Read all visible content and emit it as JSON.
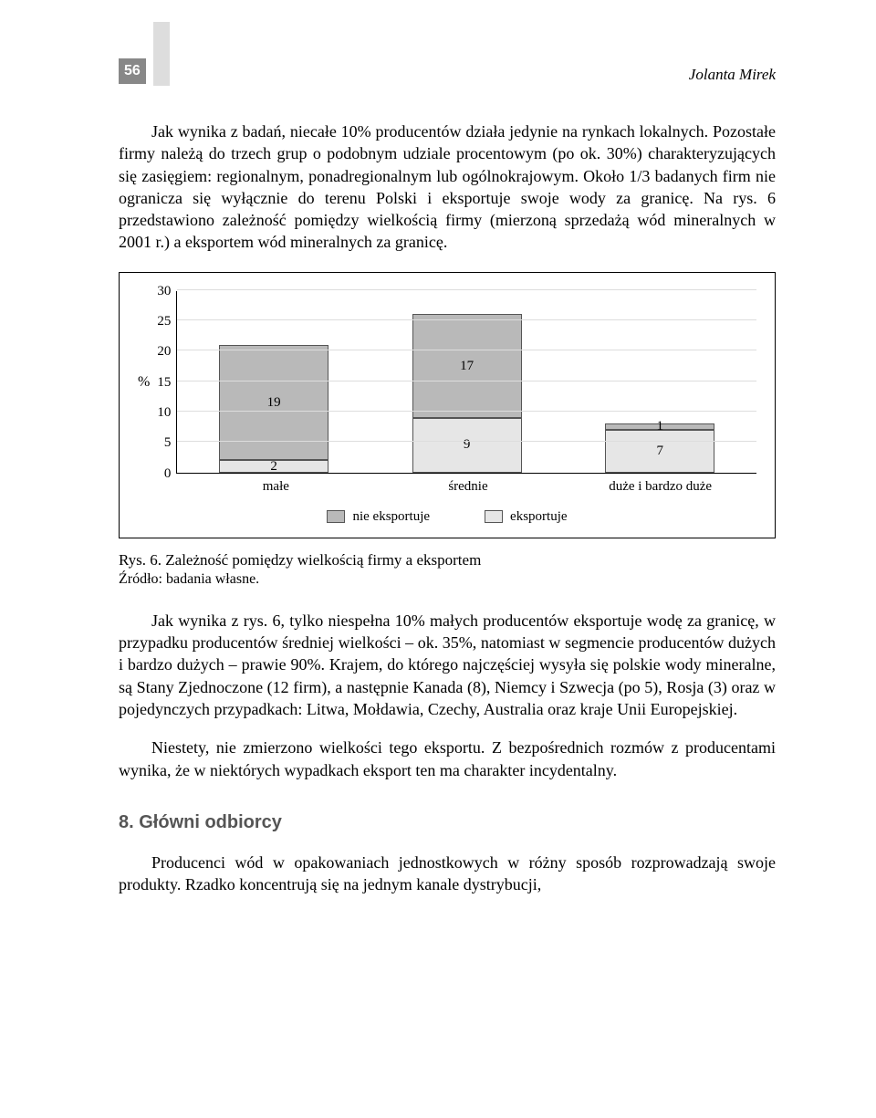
{
  "page_number": "56",
  "author": "Jolanta Mirek",
  "paragraphs": {
    "p1": "Jak wynika z badań, niecałe 10% producentów działa jedynie na rynkach lokalnych. Pozostałe firmy należą do trzech grup o podobnym udziale procentowym (po ok. 30%) charakteryzujących się zasięgiem: regionalnym, ponadregionalnym lub ogólnokrajowym. Około 1/3 badanych firm nie ogranicza się wyłącznie do terenu Polski i eksportuje swoje wody za granicę. Na rys. 6 przedstawiono zależność pomiędzy wielkością firmy (mierzoną sprzedażą wód mineralnych w 2001 r.) a eksportem wód mineralnych za granicę.",
    "p2": "Jak wynika z rys. 6, tylko niespełna 10% małych producentów eksportuje wodę za granicę, w przypadku producentów średniej wielkości – ok. 35%, natomiast w segmencie producentów dużych i bardzo dużych – prawie 90%. Krajem, do którego najczęściej wysyła się polskie wody mineralne, są Stany Zjednoczone (12 firm), a następnie Kanada (8), Niemcy i Szwecja (po 5), Rosja (3) oraz w pojedynczych przypadkach: Litwa, Mołdawia, Czechy, Australia oraz kraje Unii Europejskiej.",
    "p3": "Niestety, nie zmierzono wielkości tego eksportu. Z bezpośrednich rozmów z producentami wynika, że w niektórych wypadkach eksport ten ma charakter incydentalny.",
    "p4": "Producenci wód w opakowaniach jednostkowych w różny sposób rozprowadzają swoje produkty. Rzadko koncentrują się na jednym kanale dystrybucji,"
  },
  "chart": {
    "y_unit": "%",
    "y_max": 30,
    "y_ticks": [
      "30",
      "25",
      "20",
      "15",
      "10",
      "5",
      "0"
    ],
    "categories": [
      "małe",
      "średnie",
      "duże i bardzo duże"
    ],
    "series": {
      "nie_eksportuje": {
        "label": "nie eksportuje",
        "color": "#b9b9b9",
        "values": [
          19,
          17,
          1
        ]
      },
      "eksportuje": {
        "label": "eksportuje",
        "color": "#e6e6e6",
        "values": [
          2,
          9,
          7
        ]
      }
    },
    "bar_border": "#555555",
    "grid_color": "#dddddd",
    "background": "#ffffff"
  },
  "caption": "Rys. 6. Zależność pomiędzy wielkością firmy a eksportem",
  "source": "Źródło: badania własne.",
  "section_heading": "8. Główni odbiorcy"
}
